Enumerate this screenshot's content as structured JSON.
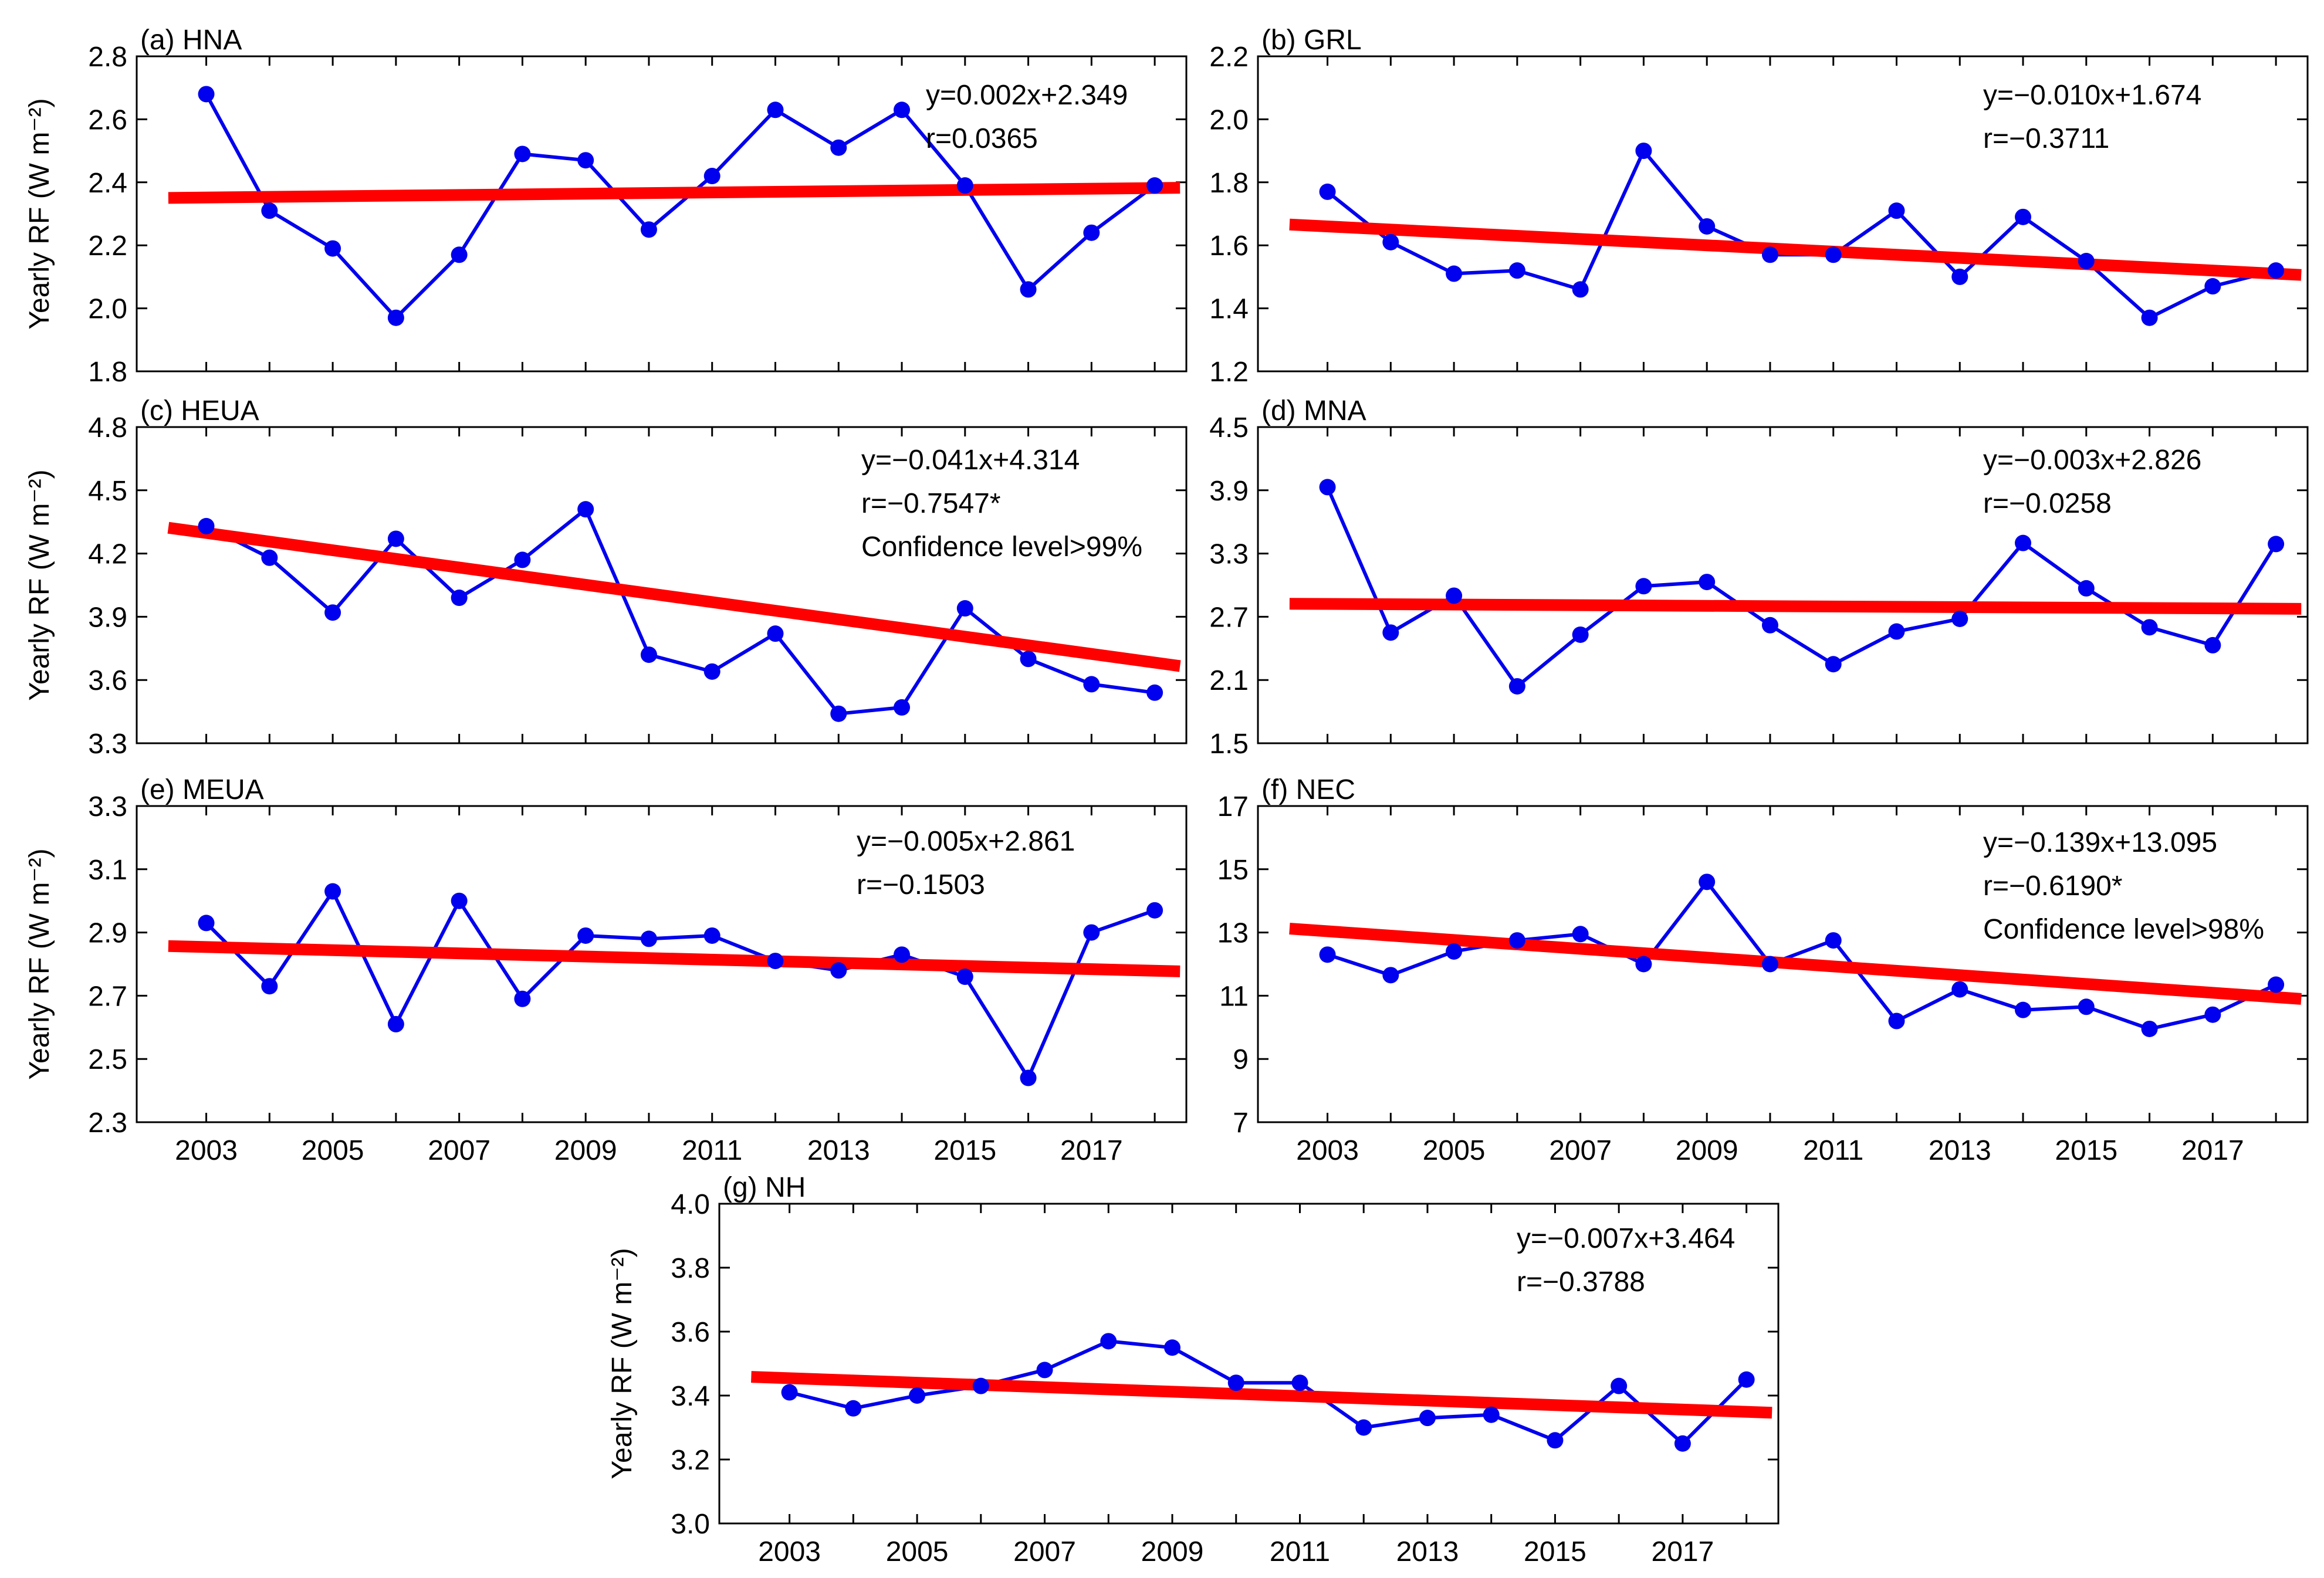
{
  "chart_data": [
    {
      "id": "a",
      "type": "line",
      "title": "(a) HNA",
      "ylabel": "Yearly RF (W m⁻²)",
      "xlabel": "",
      "ylim": [
        1.8,
        2.8
      ],
      "yticks": [
        1.8,
        2.0,
        2.2,
        2.4,
        2.6,
        2.8
      ],
      "ytick_labels": [
        "1.8",
        "2.0",
        "2.2",
        "2.4",
        "2.6",
        "2.8"
      ],
      "xlim": [
        2001.9,
        2018.5
      ],
      "xticks": [],
      "xtick_labels": [],
      "yaxis_side": "left",
      "ticks_on_right": true,
      "tick_labels_on_right": false,
      "x": [
        2003,
        2004,
        2005,
        2006,
        2007,
        2008,
        2009,
        2010,
        2011,
        2012,
        2013,
        2014,
        2015,
        2016,
        2017,
        2018
      ],
      "values": [
        2.68,
        2.31,
        2.19,
        1.97,
        2.17,
        2.49,
        2.47,
        2.25,
        2.42,
        2.63,
        2.51,
        2.63,
        2.39,
        2.06,
        2.24,
        2.39
      ],
      "fit": {
        "x0": 2002.4,
        "x1": 2018.4,
        "slope": 0.002,
        "intercept": 2.349,
        "x_origin": 2001.6
      },
      "annotations": [
        "y=0.002x+2.349",
        "r=0.0365"
      ],
      "colors": {
        "series": "#0000ee",
        "fit": "#ff0000"
      }
    },
    {
      "id": "b",
      "type": "line",
      "title": "(b) GRL",
      "ylabel": "",
      "xlabel": "",
      "ylim": [
        1.2,
        2.2
      ],
      "yticks": [
        1.2,
        1.4,
        1.6,
        1.8,
        2.0,
        2.2
      ],
      "ytick_labels": [
        "1.2",
        "1.4",
        "1.6",
        "1.8",
        "2.0",
        "2.2"
      ],
      "xlim": [
        2001.9,
        2018.5
      ],
      "xticks": [],
      "xtick_labels": [],
      "yaxis_side": "left",
      "ticks_on_right": true,
      "tick_labels_on_right": false,
      "x": [
        2003,
        2004,
        2005,
        2006,
        2007,
        2008,
        2009,
        2010,
        2011,
        2012,
        2013,
        2014,
        2015,
        2016,
        2017,
        2018
      ],
      "values": [
        1.77,
        1.61,
        1.51,
        1.52,
        1.46,
        1.9,
        1.66,
        1.57,
        1.57,
        1.71,
        1.5,
        1.69,
        1.55,
        1.37,
        1.47,
        1.52
      ],
      "fit": {
        "x0": 2002.4,
        "x1": 2018.4,
        "slope": -0.01,
        "intercept": 1.674,
        "x_origin": 2001.6
      },
      "annotations": [
        "y=−0.010x+1.674",
        "r=−0.3711"
      ],
      "colors": {
        "series": "#0000ee",
        "fit": "#ff0000"
      }
    },
    {
      "id": "c",
      "type": "line",
      "title": "(c) HEUA",
      "ylabel": "Yearly RF (W m⁻²)",
      "xlabel": "",
      "ylim": [
        3.3,
        4.8
      ],
      "yticks": [
        3.3,
        3.6,
        3.9,
        4.2,
        4.5,
        4.8
      ],
      "ytick_labels": [
        "3.3",
        "3.6",
        "3.9",
        "4.2",
        "4.5",
        "4.8"
      ],
      "xlim": [
        2001.9,
        2018.5
      ],
      "xticks": [],
      "xtick_labels": [],
      "yaxis_side": "left",
      "ticks_on_right": true,
      "tick_labels_on_right": false,
      "x": [
        2003,
        2004,
        2005,
        2006,
        2007,
        2008,
        2009,
        2010,
        2011,
        2012,
        2013,
        2014,
        2015,
        2016,
        2017,
        2018
      ],
      "values": [
        4.33,
        4.18,
        3.92,
        4.27,
        3.99,
        4.17,
        4.41,
        3.72,
        3.64,
        3.82,
        3.44,
        3.47,
        3.94,
        3.7,
        3.58,
        3.54
      ],
      "fit": {
        "x0": 2002.4,
        "x1": 2018.4,
        "slope": -0.041,
        "intercept": 4.314,
        "x_origin": 2002.6
      },
      "annotations": [
        "y=−0.041x+4.314",
        "r=−0.7547*",
        "Confidence level>99%"
      ],
      "colors": {
        "series": "#0000ee",
        "fit": "#ff0000"
      }
    },
    {
      "id": "d",
      "type": "line",
      "title": "(d) MNA",
      "ylabel": "",
      "xlabel": "",
      "ylim": [
        1.5,
        4.5
      ],
      "yticks": [
        1.5,
        2.1,
        2.7,
        3.3,
        3.9,
        4.5
      ],
      "ytick_labels": [
        "1.5",
        "2.1",
        "2.7",
        "3.3",
        "3.9",
        "4.5"
      ],
      "xlim": [
        2001.9,
        2018.5
      ],
      "xticks": [],
      "xtick_labels": [],
      "yaxis_side": "left",
      "ticks_on_right": true,
      "tick_labels_on_right": false,
      "x": [
        2003,
        2004,
        2005,
        2006,
        2007,
        2008,
        2009,
        2010,
        2011,
        2012,
        2013,
        2014,
        2015,
        2016,
        2017,
        2018
      ],
      "values": [
        3.93,
        2.55,
        2.9,
        2.04,
        2.53,
        2.99,
        3.03,
        2.62,
        2.25,
        2.56,
        2.68,
        3.4,
        2.97,
        2.6,
        2.43,
        3.39
      ],
      "fit": {
        "x0": 2002.4,
        "x1": 2018.4,
        "slope": -0.003,
        "intercept": 2.826,
        "x_origin": 2001.6
      },
      "annotations": [
        "y=−0.003x+2.826",
        "r=−0.0258"
      ],
      "colors": {
        "series": "#0000ee",
        "fit": "#ff0000"
      }
    },
    {
      "id": "e",
      "type": "line",
      "title": "(e) MEUA",
      "ylabel": "Yearly RF (W m⁻²)",
      "xlabel": "",
      "ylim": [
        2.3,
        3.3
      ],
      "yticks": [
        2.3,
        2.5,
        2.7,
        2.9,
        3.1,
        3.3
      ],
      "ytick_labels": [
        "2.3",
        "2.5",
        "2.7",
        "2.9",
        "3.1",
        "3.3"
      ],
      "xlim": [
        2001.9,
        2018.5
      ],
      "xticks": [
        2003,
        2005,
        2007,
        2009,
        2011,
        2013,
        2015,
        2017
      ],
      "xtick_labels": [
        "2003",
        "2005",
        "2007",
        "2009",
        "2011",
        "2013",
        "2015",
        "2017"
      ],
      "yaxis_side": "left",
      "ticks_on_right": true,
      "tick_labels_on_right": false,
      "x": [
        2003,
        2004,
        2005,
        2006,
        2007,
        2008,
        2009,
        2010,
        2011,
        2012,
        2013,
        2014,
        2015,
        2016,
        2017,
        2018
      ],
      "values": [
        2.93,
        2.73,
        3.03,
        2.61,
        3.0,
        2.69,
        2.89,
        2.88,
        2.89,
        2.81,
        2.78,
        2.83,
        2.76,
        2.44,
        2.9,
        2.97
      ],
      "fit": {
        "x0": 2002.4,
        "x1": 2018.4,
        "slope": -0.005,
        "intercept": 2.861,
        "x_origin": 2001.6
      },
      "annotations": [
        "y=−0.005x+2.861",
        "r=−0.1503"
      ],
      "colors": {
        "series": "#0000ee",
        "fit": "#ff0000"
      }
    },
    {
      "id": "f",
      "type": "line",
      "title": "(f) NEC",
      "ylabel": "",
      "xlabel": "",
      "ylim": [
        7,
        17
      ],
      "yticks": [
        7,
        9,
        11,
        13,
        15,
        17
      ],
      "ytick_labels": [
        "7",
        "9",
        "11",
        "13",
        "15",
        "17"
      ],
      "xlim": [
        2001.9,
        2018.5
      ],
      "xticks": [
        2003,
        2005,
        2007,
        2009,
        2011,
        2013,
        2015,
        2017
      ],
      "xtick_labels": [
        "2003",
        "2005",
        "2007",
        "2009",
        "2011",
        "2013",
        "2015",
        "2017"
      ],
      "yaxis_side": "left",
      "ticks_on_right": true,
      "tick_labels_on_right": false,
      "x": [
        2003,
        2004,
        2005,
        2006,
        2007,
        2008,
        2009,
        2010,
        2011,
        2012,
        2013,
        2014,
        2015,
        2016,
        2017,
        2018
      ],
      "values": [
        12.3,
        11.65,
        12.4,
        12.75,
        12.95,
        12.0,
        14.6,
        12.0,
        12.75,
        10.2,
        11.2,
        10.55,
        10.65,
        9.95,
        10.4,
        11.35
      ],
      "fit": {
        "x0": 2002.4,
        "x1": 2018.4,
        "slope": -0.139,
        "intercept": 13.095,
        "x_origin": 2002.6
      },
      "annotations": [
        "y=−0.139x+13.095",
        "r=−0.6190*",
        "Confidence level>98%"
      ],
      "colors": {
        "series": "#0000ee",
        "fit": "#ff0000"
      }
    },
    {
      "id": "g",
      "type": "line",
      "title": "(g) NH",
      "ylabel": "Yearly RF (W m⁻²)",
      "xlabel": "",
      "ylim": [
        3.0,
        4.0
      ],
      "yticks": [
        3.0,
        3.2,
        3.4,
        3.6,
        3.8,
        4.0
      ],
      "ytick_labels": [
        "3.0",
        "3.2",
        "3.4",
        "3.6",
        "3.8",
        "4.0"
      ],
      "xlim": [
        2001.9,
        2018.5
      ],
      "xticks": [
        2003,
        2005,
        2007,
        2009,
        2011,
        2013,
        2015,
        2017
      ],
      "xtick_labels": [
        "2003",
        "2005",
        "2007",
        "2009",
        "2011",
        "2013",
        "2015",
        "2017"
      ],
      "yaxis_side": "left",
      "ticks_on_right": true,
      "tick_labels_on_right": false,
      "x": [
        2003,
        2004,
        2005,
        2006,
        2007,
        2008,
        2009,
        2010,
        2011,
        2012,
        2013,
        2014,
        2015,
        2016,
        2017,
        2018
      ],
      "values": [
        3.41,
        3.36,
        3.4,
        3.43,
        3.48,
        3.57,
        3.55,
        3.44,
        3.44,
        3.3,
        3.33,
        3.34,
        3.26,
        3.43,
        3.25,
        3.45
      ],
      "fit": {
        "x0": 2002.4,
        "x1": 2018.4,
        "slope": -0.007,
        "intercept": 3.464,
        "x_origin": 2001.6
      },
      "annotations": [
        "y=−0.007x+3.464",
        "r=−0.3788"
      ],
      "colors": {
        "series": "#0000ee",
        "fit": "#ff0000"
      }
    }
  ]
}
